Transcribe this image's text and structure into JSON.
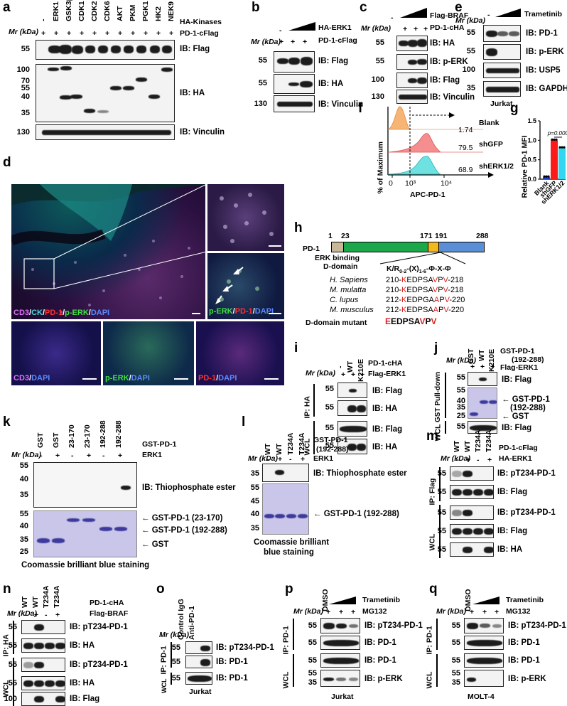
{
  "panels": {
    "a": {
      "label": "a",
      "lanes": [
        "-",
        "ERK1",
        "GSK3β",
        "CDK1",
        "CDK2",
        "CDK6",
        "AKT",
        "PKM",
        "PGK1",
        "HK2",
        "NEK9"
      ],
      "row1": "HA-Kinases",
      "row2": "PD-1-cFlag",
      "mw_title": "Mr (kDa)",
      "row2_signs": [
        "+",
        "+",
        "+",
        "+",
        "+",
        "+",
        "+",
        "+",
        "+",
        "+",
        "+"
      ],
      "blots": [
        {
          "ib": "IB: Flag",
          "mw": [
            "55"
          ]
        },
        {
          "ib": "IB: HA",
          "mw": [
            "100",
            "70",
            "55",
            "40",
            "35"
          ]
        },
        {
          "ib": "IB: Vinculin",
          "mw": [
            "130"
          ]
        }
      ]
    },
    "b": {
      "label": "b",
      "row1": "HA-ERK1",
      "row2": "PD-1-cFlag",
      "mw_title": "Mr (kDa)",
      "row1_signs": [
        "-"
      ],
      "row2_signs": [
        "+",
        "+",
        "+"
      ],
      "blots": [
        {
          "ib": "IB: Flag",
          "mw": "55"
        },
        {
          "ib": "IB: HA",
          "mw": "55"
        },
        {
          "ib": "IB: Vinculin",
          "mw": "130"
        }
      ]
    },
    "c": {
      "label": "c",
      "row1": "Flag-BRAF",
      "row2": "PD-1-cHA",
      "mw_title": "Mr (kDa)",
      "row1_signs": [
        "-"
      ],
      "row2_signs": [
        "+",
        "+",
        "+"
      ],
      "blots": [
        {
          "ib": "IB: HA",
          "mw": "55"
        },
        {
          "ib": "IB: p-ERK",
          "mw": "55"
        },
        {
          "ib": "IB: Flag",
          "mw": "100"
        },
        {
          "ib": "IB: Vinculin",
          "mw": "130"
        }
      ]
    },
    "e": {
      "label": "e",
      "row1": "Trametinib",
      "mw_title": "Mr (kDa)",
      "row1_signs": [
        "-"
      ],
      "cell": "Jurkat",
      "blots": [
        {
          "ib": "IB: PD-1",
          "mw": "55"
        },
        {
          "ib": "IB: p-ERK",
          "mw": "55"
        },
        {
          "ib": "IB: USP5",
          "mw": "100"
        },
        {
          "ib": "IB: GAPDH",
          "mw": "35"
        }
      ]
    },
    "f": {
      "label": "f",
      "ylabel": "% of Maximum",
      "xlabel": "APC-PD-1",
      "ticks": [
        "0",
        "10³",
        "10⁴"
      ],
      "tracks": [
        {
          "name": "Blank",
          "value": "1.74",
          "color": "#f3a55c"
        },
        {
          "name": "shGFP",
          "value": "79.5",
          "color": "#f07070"
        },
        {
          "name": "shERK1/2",
          "value": "68.9",
          "color": "#5fd3d3"
        }
      ]
    },
    "g": {
      "label": "g",
      "ylabel": "Relative PD-1 MFI",
      "pval": "p=0.0001",
      "yticks": [
        "0.0",
        "0.5",
        "1.0",
        "1.5"
      ]
    },
    "d": {
      "label": "d",
      "main_caption": [
        "CD3",
        "/",
        "CK",
        "/",
        "PD-1",
        "/",
        "p-ERK",
        "/",
        "DAPI"
      ],
      "mid_caption": [
        "p-ERK",
        "/",
        "PD-1",
        "/",
        "DAPI"
      ],
      "bl_caption": [
        "CD3",
        "/",
        "DAPI"
      ],
      "bm_caption": [
        "p-ERK",
        "/",
        "DAPI"
      ],
      "br_caption": [
        "PD-1",
        "/",
        "DAPI"
      ]
    },
    "h": {
      "label": "h",
      "protein": "PD-1",
      "positions": [
        "1",
        "23",
        "171",
        "191",
        "288"
      ],
      "motif_title": "ERK binding D-domain",
      "motif": "K/R0-2-(X)1-6-Φ-X-Φ",
      "species": [
        {
          "name": "H. Sapiens",
          "seq": [
            "210-",
            "K",
            "EDPSA",
            "V",
            "P",
            "V",
            "-218"
          ]
        },
        {
          "name": "M. mulatta",
          "seq": [
            "210-",
            "K",
            "EDPSA",
            "V",
            "P",
            "V",
            "-218"
          ]
        },
        {
          "name": "C. lupus",
          "seq": [
            "212-",
            "K",
            "EDPGA",
            "A",
            "P",
            "V",
            "-220"
          ]
        },
        {
          "name": "M. musculus",
          "seq": [
            "212-",
            "K",
            "EDPSA",
            "A",
            "P",
            "V",
            "-220"
          ]
        }
      ],
      "mutant_label": "D-domain mutant",
      "mutant_seq": [
        "E",
        "EDPSA",
        "V",
        "P",
        "V"
      ]
    },
    "i": {
      "label": "i",
      "lanes": [
        "-",
        "WT",
        "K210E"
      ],
      "row1": "PD-1-cHA",
      "row2": "Flag-ERK1",
      "mw_title": "Mr (kDa)",
      "row2_signs": [
        "+",
        "+",
        "+"
      ],
      "blots": [
        {
          "ib": "IB: Flag",
          "mw": "55"
        },
        {
          "ib": "IB: HA",
          "mw": "55"
        },
        {
          "ib": "IB: Flag",
          "mw": "55"
        },
        {
          "ib": "IB: HA",
          "mw": "55"
        }
      ],
      "groups": [
        "IP: HA",
        "WCL"
      ]
    },
    "j": {
      "label": "j",
      "lanes": [
        "GST",
        "WT",
        "K210E"
      ],
      "row1": "GST-PD-1",
      "row1b": "(192-288)",
      "row2": "Flag-ERK1",
      "mw_title": "Mr (kDa)",
      "row2_signs": [
        "+",
        "+",
        "+"
      ],
      "blots": [
        {
          "ib": "IB: Flag",
          "mw": [
            "55"
          ]
        },
        {
          "ib": "",
          "mw": [
            "55",
            "40",
            "35",
            "25"
          ]
        },
        {
          "ib": "IB: Flag",
          "mw": [
            "55"
          ]
        }
      ],
      "arrows": [
        "GST-PD-1",
        "(192-288)",
        "GST"
      ],
      "groups": [
        "GST Pull-down",
        "WCL"
      ]
    },
    "k": {
      "label": "k",
      "lanes": [
        "GST",
        "GST",
        "23-170",
        "23-170",
        "192-288",
        "192-288"
      ],
      "row1": "GST-PD-1",
      "row2": "ERK1",
      "mw_title": "Mr (kDa)",
      "row2_signs": [
        "-",
        "+",
        "-",
        "+",
        "-",
        "+"
      ],
      "mw_top": [
        "55",
        "40",
        "35"
      ],
      "mw_bot": [
        "55",
        "40",
        "35",
        "25"
      ],
      "ib": "IB: Thiophosphate ester",
      "arrows": [
        "GST-PD-1 (23-170)",
        "GST-PD-1 (192-288)",
        "GST"
      ],
      "caption": "Coomassie brilliant blue staining"
    },
    "l": {
      "label": "l",
      "lanes": [
        "WT",
        "WT",
        "T234A",
        "T234A"
      ],
      "row1": "GST-PD-1",
      "row1b": "(192-288)",
      "row2": "ERK1",
      "mw_title": "Mr (kDa)",
      "row2_signs": [
        "-",
        "+",
        "-",
        "+"
      ],
      "mw_top": [
        "35"
      ],
      "mw_bot": [
        "55",
        "45",
        "40",
        "35"
      ],
      "ib": "IB: Thiophosphate ester",
      "arrow": "GST-PD-1 (192-288)",
      "caption": [
        "Coomassie brilliant",
        "blue staining"
      ]
    },
    "m": {
      "label": "m",
      "lanes": [
        "WT",
        "WT",
        "T234A",
        "T234A"
      ],
      "row1": "PD-1-cFlag",
      "row2": "HA-ERK1",
      "mw_title": "Mr (kDa)",
      "row2_signs": [
        "-",
        "+",
        "-",
        "+"
      ],
      "blots": [
        {
          "ib": "IB: pT234-PD-1",
          "mw": "55"
        },
        {
          "ib": "IB: Flag",
          "mw": "55"
        },
        {
          "ib": "IB: pT234-PD-1",
          "mw": "55"
        },
        {
          "ib": "IB: Flag",
          "mw": "55"
        },
        {
          "ib": "IB: HA",
          "mw": "55"
        }
      ],
      "groups": [
        "IP: Flag",
        "WCL"
      ]
    },
    "n": {
      "label": "n",
      "lanes": [
        "WT",
        "WT",
        "T234A",
        "T234A"
      ],
      "row1": "PD-1-cHA",
      "row2": "Flag-BRAF",
      "mw_title": "Mr (kDa)",
      "row2_signs": [
        "-",
        "+",
        "-",
        "+"
      ],
      "blots": [
        {
          "ib": "IB: pT234-PD-1",
          "mw": "55"
        },
        {
          "ib": "IB: HA",
          "mw": "55"
        },
        {
          "ib": "IB: pT234-PD-1",
          "mw": "55"
        },
        {
          "ib": "IB: HA",
          "mw": "55"
        },
        {
          "ib": "IB: Flag",
          "mw": "100"
        }
      ],
      "groups": [
        "IP: HA",
        "WCL"
      ]
    },
    "o": {
      "label": "o",
      "lanes": [
        "Control IgG",
        "Anti-PD-1"
      ],
      "mw_title": "Mr (kDa)",
      "cell": "Jurkat",
      "blots": [
        {
          "ib": "IB: pT234-PD-1",
          "mw": "55"
        },
        {
          "ib": "IB: PD-1",
          "mw": "55"
        },
        {
          "ib": "IB: PD-1",
          "mw": "55"
        }
      ],
      "groups": [
        "IP: PD-1",
        "WCL"
      ]
    },
    "p": {
      "label": "p",
      "lanes": [
        "DMSO"
      ],
      "row1": "Trametinib",
      "row2": "MG132",
      "mw_title": "Mr (kDa)",
      "row2_signs": [
        "+",
        "+",
        "+"
      ],
      "cell": "Jurkat",
      "blots": [
        {
          "ib": "IB: pT234-PD-1",
          "mw": "55"
        },
        {
          "ib": "IB: PD-1",
          "mw": "55"
        },
        {
          "ib": "IB: PD-1",
          "mw": "55"
        },
        {
          "ib": "IB: p-ERK",
          "mw": [
            "55",
            "35"
          ]
        }
      ],
      "groups": [
        "IP: PD-1",
        "WCL"
      ]
    },
    "q": {
      "label": "q",
      "lanes": [
        "DMSO"
      ],
      "row1": "Trametinib",
      "row2": "MG132",
      "mw_title": "Mr (kDa)",
      "row2_signs": [
        "+",
        "+",
        "+"
      ],
      "cell": "MOLT-4",
      "blots": [
        {
          "ib": "IB: pT234-PD-1",
          "mw": "55"
        },
        {
          "ib": "IB: PD-1",
          "mw": "55"
        },
        {
          "ib": "IB: PD-1",
          "mw": "55"
        },
        {
          "ib": "IB: p-ERK",
          "mw": [
            "55",
            "35"
          ]
        }
      ],
      "groups": [
        "IP: PD-1",
        "WCL"
      ]
    }
  },
  "chart_data": {
    "type": "bar",
    "categories": [
      "Blank",
      "shGFP",
      "shERK1/2"
    ],
    "values": [
      0.05,
      1.0,
      0.8
    ],
    "colors": [
      "#1a3fd6",
      "#ff1a1a",
      "#33d6f0"
    ],
    "ylabel": "Relative PD-1 MFI",
    "ylim": [
      0,
      1.5
    ],
    "annotation": "p=0.0001"
  }
}
